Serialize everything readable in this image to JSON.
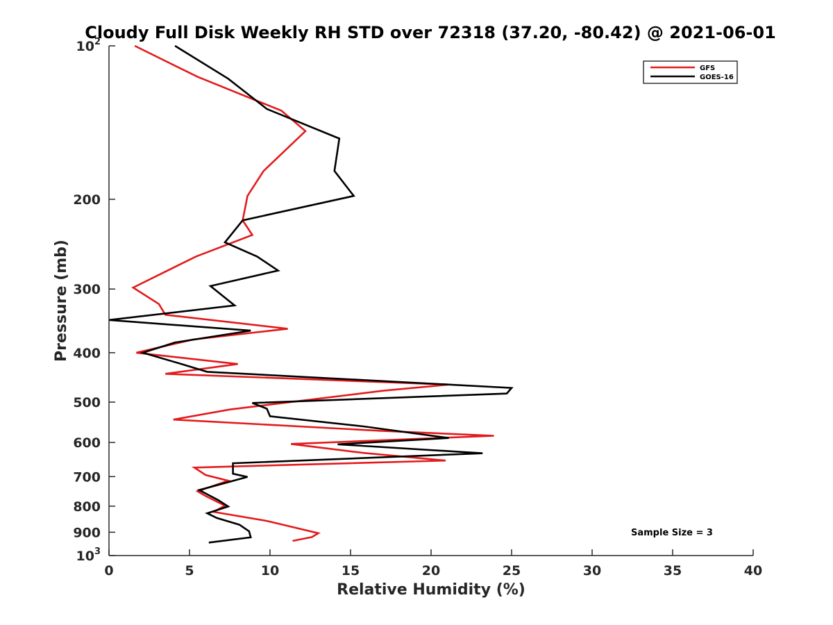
{
  "chart_data": {
    "type": "line",
    "title": "Cloudy Full Disk Weekly RH STD over 72318 (37.20, -80.42) @ 2021-06-01",
    "xlabel": "Relative Humidity (%)",
    "ylabel": "Pressure (mb)",
    "xlim": [
      0,
      40
    ],
    "ylim": [
      100,
      1000
    ],
    "yscale": "log",
    "y_direction": "reversed",
    "xticks": [
      "0",
      "5",
      "10",
      "15",
      "20",
      "25",
      "30",
      "35",
      "40"
    ],
    "yticks": [
      {
        "value": 100,
        "label": "10",
        "sup": "2"
      },
      {
        "value": 200,
        "label": "200"
      },
      {
        "value": 300,
        "label": "300"
      },
      {
        "value": 400,
        "label": "400"
      },
      {
        "value": 500,
        "label": "500"
      },
      {
        "value": 600,
        "label": "600"
      },
      {
        "value": 700,
        "label": "700"
      },
      {
        "value": 800,
        "label": "800"
      },
      {
        "value": 900,
        "label": "900"
      },
      {
        "value": 1000,
        "label": "10",
        "sup": "3"
      }
    ],
    "legend": {
      "position": "top-right"
    },
    "annotation": "Sample Size = 3",
    "series": [
      {
        "name": "GFS",
        "color": "#e31a1c",
        "points": [
          [
            1.6,
            100
          ],
          [
            5.5,
            115
          ],
          [
            10.7,
            134
          ],
          [
            12.2,
            147
          ],
          [
            9.6,
            176
          ],
          [
            8.6,
            197
          ],
          [
            8.3,
            220
          ],
          [
            8.9,
            235
          ],
          [
            5.4,
            259
          ],
          [
            1.5,
            298
          ],
          [
            3.1,
            321
          ],
          [
            3.5,
            337
          ],
          [
            11.1,
            359
          ],
          [
            5.2,
            377
          ],
          [
            1.7,
            400
          ],
          [
            8.0,
            421
          ],
          [
            3.5,
            440
          ],
          [
            21.1,
            462
          ],
          [
            17.0,
            475
          ],
          [
            7.5,
            517
          ],
          [
            4.0,
            541
          ],
          [
            16.8,
            569
          ],
          [
            23.9,
            582
          ],
          [
            11.3,
            604
          ],
          [
            15.8,
            629
          ],
          [
            20.9,
            651
          ],
          [
            5.3,
            672
          ],
          [
            6.0,
            695
          ],
          [
            7.4,
            713
          ],
          [
            5.5,
            748
          ],
          [
            6.0,
            764
          ],
          [
            7.2,
            798
          ],
          [
            6.5,
            821
          ],
          [
            9.8,
            855
          ],
          [
            13.0,
            904
          ],
          [
            12.6,
            920
          ],
          [
            11.4,
            936
          ]
        ]
      },
      {
        "name": "GOES-16",
        "color": "#000000",
        "points": [
          [
            4.1,
            100
          ],
          [
            7.4,
            116
          ],
          [
            9.8,
            133
          ],
          [
            14.3,
            152
          ],
          [
            14.0,
            176
          ],
          [
            15.2,
            197
          ],
          [
            8.3,
            220
          ],
          [
            7.2,
            243
          ],
          [
            9.2,
            259
          ],
          [
            10.5,
            276
          ],
          [
            6.3,
            296
          ],
          [
            7.8,
            323
          ],
          [
            0.0,
            345
          ],
          [
            8.8,
            362
          ],
          [
            4.1,
            382
          ],
          [
            2.1,
            400
          ],
          [
            4.4,
            420
          ],
          [
            6.1,
            436
          ],
          [
            25.0,
            469
          ],
          [
            24.7,
            481
          ],
          [
            8.9,
            502
          ],
          [
            9.8,
            515
          ],
          [
            10.0,
            533
          ],
          [
            15.8,
            558
          ],
          [
            21.1,
            588
          ],
          [
            14.2,
            605
          ],
          [
            23.2,
            630
          ],
          [
            7.7,
            659
          ],
          [
            7.7,
            691
          ],
          [
            8.6,
            701
          ],
          [
            5.6,
            744
          ],
          [
            6.8,
            779
          ],
          [
            7.4,
            801
          ],
          [
            6.1,
            826
          ],
          [
            6.7,
            844
          ],
          [
            8.1,
            870
          ],
          [
            8.7,
            896
          ],
          [
            8.8,
            921
          ],
          [
            6.2,
            943
          ]
        ]
      }
    ]
  }
}
